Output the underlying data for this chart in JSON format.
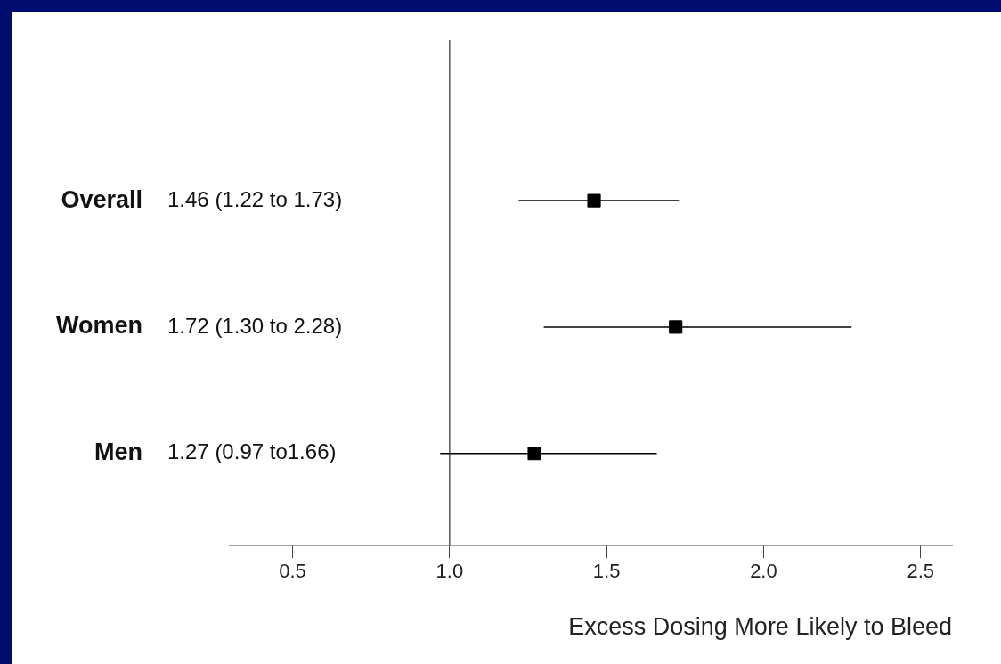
{
  "chart_data": {
    "type": "scatter",
    "orientation": "horizontal",
    "xlabel": "Excess Dosing More Likely to Bleed",
    "categories": [
      "Overall",
      "Women",
      "Men"
    ],
    "values": [
      1.46,
      1.72,
      1.27
    ],
    "errors": [
      [
        1.22,
        1.73
      ],
      [
        1.3,
        2.28
      ],
      [
        0.97,
        1.66
      ]
    ],
    "annotations": [
      "1.46 (1.22 to 1.73)",
      "1.72 (1.30 to 2.28)",
      "1.27 (0.97 to1.66)"
    ],
    "color": "#000000",
    "marker": "square",
    "xlim": [
      0.3,
      2.6
    ],
    "xticks": [
      {
        "value": 0.5,
        "label": "0.5"
      },
      {
        "value": 1,
        "label": "1.0"
      },
      {
        "value": 1.5,
        "label": "1.5"
      },
      {
        "value": 2,
        "label": "2.0"
      },
      {
        "value": 2.5,
        "label": "2.5"
      }
    ],
    "ref_lines": [
      {
        "axis": "x",
        "value": 1,
        "color": "#555555"
      }
    ],
    "grid": false,
    "legend": false
  }
}
